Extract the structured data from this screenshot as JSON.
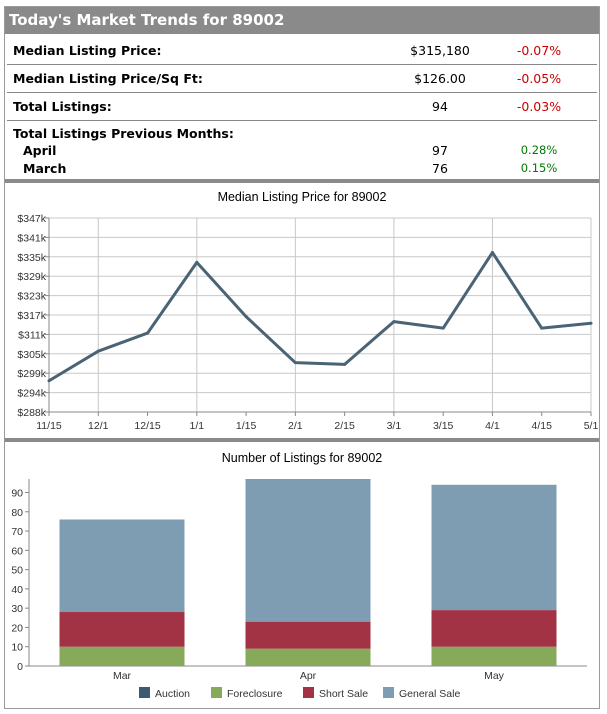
{
  "header": {
    "title": "Today's Market Trends for 89002"
  },
  "stats": [
    {
      "label": "Median Listing Price:",
      "value": "$315,180",
      "change": "-0.07%",
      "dir": "neg"
    },
    {
      "label": "Median Listing Price/Sq Ft:",
      "value": "$126.00",
      "change": "-0.05%",
      "dir": "neg"
    },
    {
      "label": "Total Listings:",
      "value": "94",
      "change": "-0.03%",
      "dir": "neg"
    }
  ],
  "previous": {
    "label": "Total Listings Previous Months:",
    "months": [
      {
        "label": "April",
        "value": "97",
        "change": "0.28%",
        "dir": "pos"
      },
      {
        "label": "March",
        "value": "76",
        "change": "0.15%",
        "dir": "pos"
      }
    ]
  },
  "colors": {
    "line": "#4a6375",
    "auction": "#3e5a70",
    "foreclosure": "#86a95a",
    "short_sale": "#a23344",
    "general_sale": "#7f9db2"
  },
  "chart_data": [
    {
      "type": "line",
      "title": "Median Listing Price for 89002",
      "x": [
        "11/15",
        "12/1",
        "12/15",
        "1/1",
        "1/15",
        "2/1",
        "2/15",
        "3/1",
        "3/15",
        "4/1",
        "4/15",
        "5/1"
      ],
      "values": [
        297500,
        306500,
        312000,
        333500,
        317000,
        303000,
        302500,
        315500,
        313500,
        336500,
        313500,
        315000
      ],
      "y_ticks": [
        "$288k",
        "$294k",
        "$299k",
        "$305k",
        "$311k",
        "$317k",
        "$323k",
        "$329k",
        "$335k",
        "$341k",
        "$347k"
      ],
      "ylim": [
        288000,
        347000
      ],
      "grid": true
    },
    {
      "type": "bar",
      "stacked": true,
      "title": "Number of Listings for 89002",
      "categories": [
        "Mar",
        "Apr",
        "May"
      ],
      "series": [
        {
          "name": "Auction",
          "values": [
            0,
            0,
            0
          ]
        },
        {
          "name": "Foreclosure",
          "values": [
            10,
            9,
            10
          ]
        },
        {
          "name": "Short Sale",
          "values": [
            18,
            14,
            19
          ]
        },
        {
          "name": "General Sale",
          "values": [
            48,
            74,
            65
          ]
        }
      ],
      "y_ticks": [
        "0",
        "10",
        "20",
        "30",
        "40",
        "50",
        "60",
        "70",
        "80",
        "90"
      ],
      "ylim": [
        0,
        97
      ],
      "legend": "bottom"
    }
  ]
}
